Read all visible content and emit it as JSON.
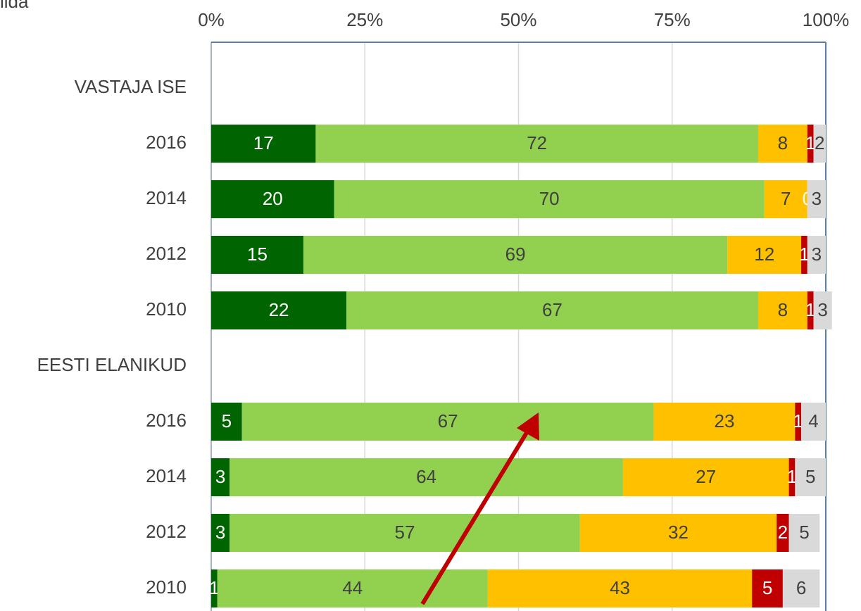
{
  "chart_data": {
    "type": "stacked-bar-horizontal",
    "corner_text": "lida",
    "categories": [
      "VASTAJA ISE",
      "2016",
      "2014",
      "2012",
      "2010",
      "EESTI ELANIKUD",
      "2016",
      "2014",
      "2012",
      "2010"
    ],
    "series": [
      {
        "color": "#006400",
        "values": [
          null,
          17,
          20,
          15,
          22,
          null,
          5,
          3,
          3,
          1
        ]
      },
      {
        "color": "#92d050",
        "values": [
          null,
          72,
          70,
          69,
          67,
          null,
          67,
          64,
          57,
          44
        ]
      },
      {
        "color": "#ffc000",
        "values": [
          null,
          8,
          7,
          12,
          8,
          null,
          23,
          27,
          32,
          43
        ]
      },
      {
        "color": "#c00000",
        "values": [
          null,
          1,
          0,
          1,
          1,
          null,
          1,
          1,
          2,
          5
        ]
      },
      {
        "color": "#d9d9d9",
        "values": [
          null,
          2,
          3,
          3,
          3,
          null,
          4,
          5,
          5,
          6
        ]
      }
    ],
    "xlim": [
      0,
      100
    ],
    "xticks": [
      {
        "value": 0,
        "label": "0%"
      },
      {
        "value": 25,
        "label": "25%"
      },
      {
        "value": 50,
        "label": "50%"
      },
      {
        "value": 75,
        "label": "75%"
      },
      {
        "value": 100,
        "label": "100%"
      }
    ],
    "grid": true
  }
}
